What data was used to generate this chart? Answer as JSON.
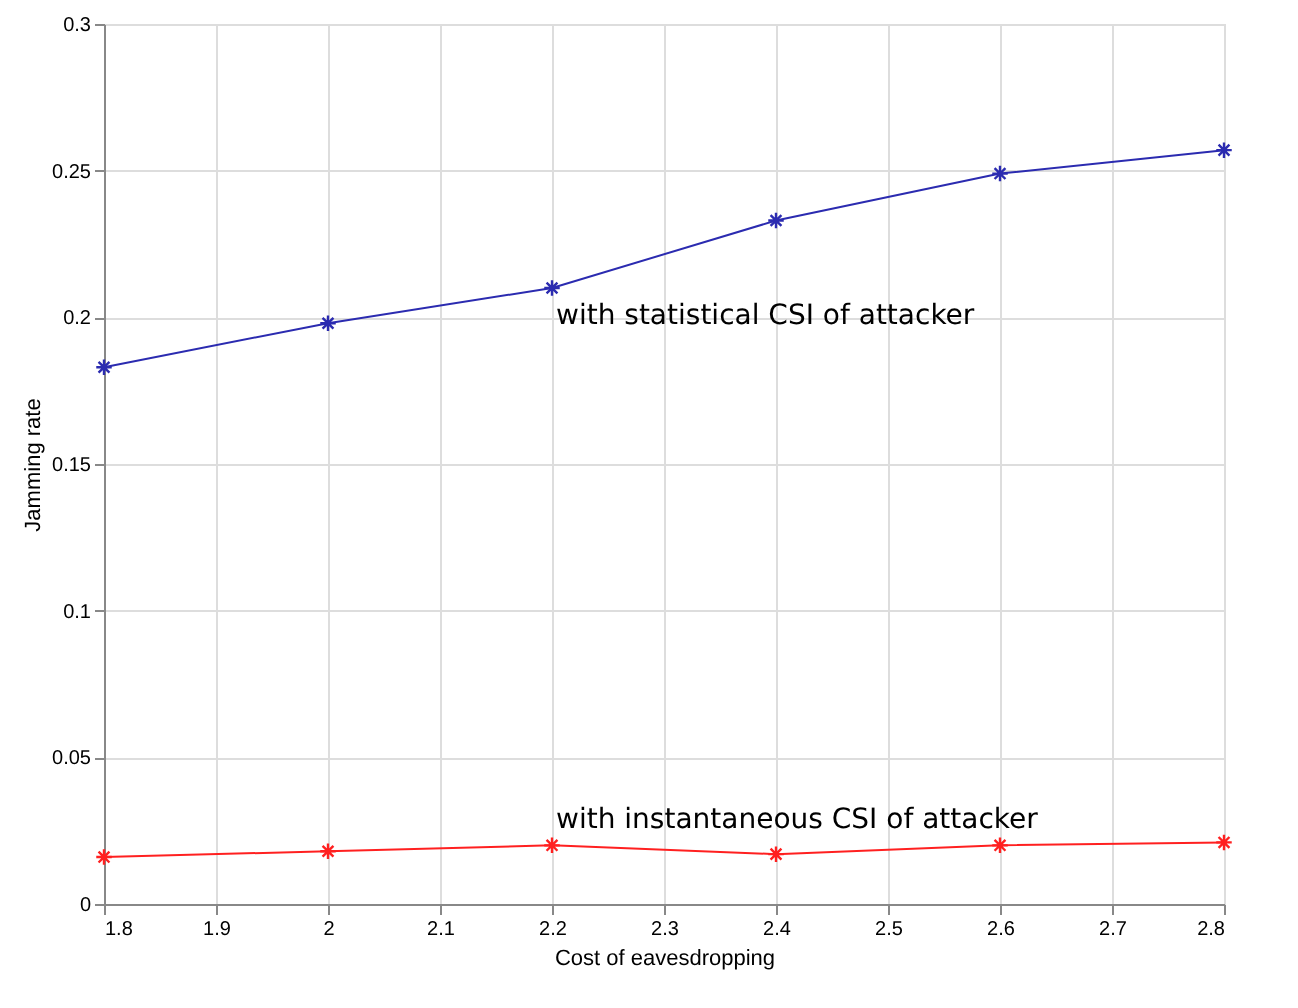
{
  "chart_data": {
    "type": "line",
    "xlabel": "Cost of eavesdropping",
    "ylabel": "Jamming rate",
    "x": [
      1.8,
      2.0,
      2.2,
      2.4,
      2.6,
      2.8
    ],
    "series": [
      {
        "color": "#2b2bb0",
        "values": [
          0.183,
          0.198,
          0.21,
          0.233,
          0.249,
          0.257
        ]
      },
      {
        "color": "#ff2020",
        "values": [
          0.016,
          0.018,
          0.02,
          0.017,
          0.02,
          0.021
        ]
      }
    ],
    "annotations": [
      "with statistical CSI of attacker",
      "with instantaneous CSI of attacker"
    ],
    "xlim": [
      1.8,
      2.8
    ],
    "xticks": [
      1.8,
      1.9,
      2,
      2.1,
      2.2,
      2.3,
      2.4,
      2.5,
      2.6,
      2.7,
      2.8
    ],
    "ylim": [
      0,
      0.3
    ],
    "yticks": [
      0,
      0.05,
      0.1,
      0.15,
      0.2,
      0.25,
      0.3
    ],
    "grid": true,
    "marker": "cross",
    "line_style": "solid"
  }
}
